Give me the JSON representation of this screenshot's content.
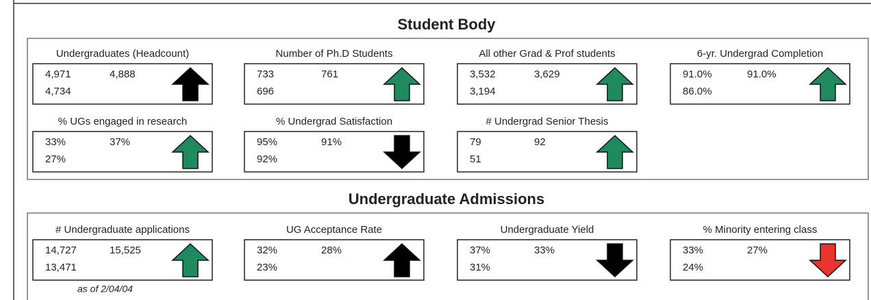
{
  "sections": [
    {
      "title": "Student Body",
      "cards": [
        {
          "label": "Undergraduates (Headcount)",
          "top_left": "4,971",
          "top_right": "4,888",
          "bottom_left": "4,734",
          "arrow": {
            "direction": "up",
            "color": "#000000"
          }
        },
        {
          "label": "Number of Ph.D Students",
          "top_left": "733",
          "top_right": "761",
          "bottom_left": "696",
          "arrow": {
            "direction": "up",
            "color": "#1f8a5e"
          }
        },
        {
          "label": "All other Grad & Prof students",
          "top_left": "3,532",
          "top_right": "3,629",
          "bottom_left": "3,194",
          "arrow": {
            "direction": "up",
            "color": "#1f8a5e"
          }
        },
        {
          "label": "6-yr. Undergrad Completion",
          "top_left": "91.0%",
          "top_right": "91.0%",
          "bottom_left": "86.0%",
          "arrow": {
            "direction": "up",
            "color": "#1f8a5e"
          }
        },
        {
          "label": "% UGs engaged in research",
          "top_left": "33%",
          "top_right": "37%",
          "bottom_left": "27%",
          "arrow": {
            "direction": "up",
            "color": "#1f8a5e"
          }
        },
        {
          "label": "%  Undergrad Satisfaction",
          "top_left": "95%",
          "top_right": "91%",
          "bottom_left": "92%",
          "arrow": {
            "direction": "down",
            "color": "#000000"
          }
        },
        {
          "label": "# Undergrad Senior Thesis",
          "top_left": "79",
          "top_right": "92",
          "bottom_left": "51",
          "arrow": {
            "direction": "up",
            "color": "#1f8a5e"
          }
        }
      ]
    },
    {
      "title": "Undergraduate Admissions",
      "cards": [
        {
          "label": "# Undergraduate applications",
          "top_left": "14,727",
          "top_right": "15,525",
          "bottom_left": "13,471",
          "arrow": {
            "direction": "up",
            "color": "#1f8a5e"
          },
          "note": "as of 2/04/04"
        },
        {
          "label": "UG Acceptance Rate",
          "top_left": "32%",
          "top_right": "28%",
          "bottom_left": "23%",
          "arrow": {
            "direction": "up",
            "color": "#000000"
          }
        },
        {
          "label": "Undergraduate Yield",
          "top_left": "37%",
          "top_right": "33%",
          "bottom_left": "31%",
          "arrow": {
            "direction": "down",
            "color": "#000000"
          }
        },
        {
          "label": "% Minority entering class",
          "top_left": "33%",
          "top_right": "27%",
          "bottom_left": "24%",
          "arrow": {
            "direction": "down",
            "color": "#e8342a"
          }
        }
      ]
    }
  ]
}
